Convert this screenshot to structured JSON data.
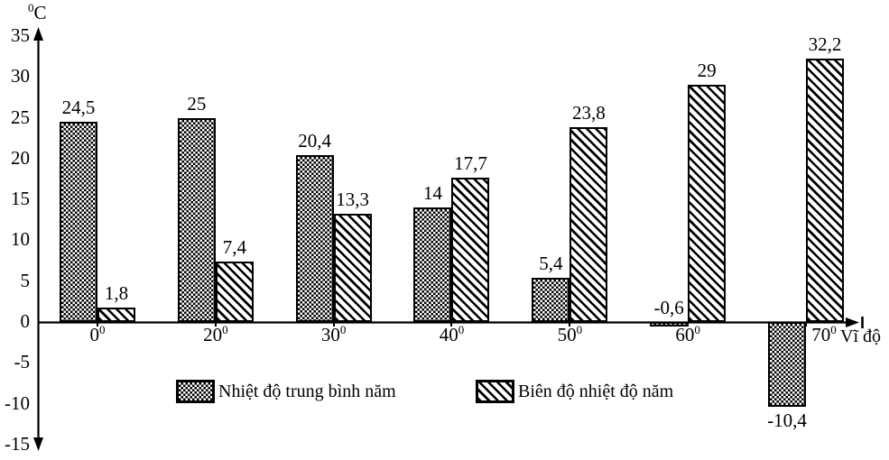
{
  "chart_data": {
    "type": "bar",
    "title": "",
    "y_axis": {
      "unit_text": "C",
      "unit_sup": "0",
      "ticks": [
        "35",
        "30",
        "25",
        "20",
        "15",
        "10",
        "5",
        "0",
        "-5",
        "-10",
        "-15"
      ],
      "tick_values": [
        35,
        30,
        25,
        20,
        15,
        10,
        5,
        0,
        -5,
        -10,
        -15
      ],
      "range": [
        -15,
        35
      ]
    },
    "x_axis": {
      "label": "Vĩ độ",
      "categories": [
        {
          "text": "0",
          "sup": "0",
          "dx": 0
        },
        {
          "text": "20",
          "sup": "0",
          "dx": 0
        },
        {
          "text": "30",
          "sup": "0",
          "dx": 0
        },
        {
          "text": "40",
          "sup": "0",
          "dx": 0
        },
        {
          "text": "50",
          "sup": "0",
          "dx": 0
        },
        {
          "text": "60",
          "sup": "0",
          "dx": 0
        },
        {
          "text": "70",
          "sup": "0",
          "dx": 20
        }
      ]
    },
    "series": [
      {
        "name": "Nhiệt độ trung bình năm",
        "pattern": "checker",
        "values": [
          24.5,
          25,
          20.4,
          14,
          5.4,
          -0.6,
          -10.4
        ],
        "labels": [
          "24,5",
          "25",
          "20,4",
          "14",
          "5,4",
          "-0,6",
          "-10,4"
        ]
      },
      {
        "name": "Biên độ nhiệt độ năm",
        "pattern": "diagonal",
        "values": [
          1.8,
          7.4,
          13.3,
          17.7,
          23.8,
          29,
          32.2
        ],
        "labels": [
          "1,8",
          "7,4",
          "13,3",
          "17,7",
          "23,8",
          "29",
          "32,2"
        ]
      }
    ],
    "grid": false,
    "legend_position": "bottom"
  },
  "colors": {
    "ink": "#000000",
    "background": "#ffffff"
  }
}
